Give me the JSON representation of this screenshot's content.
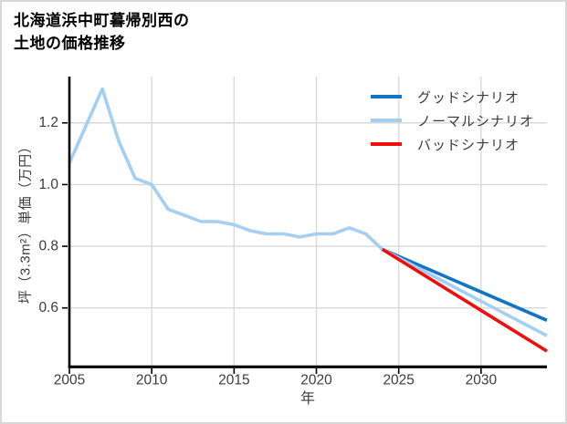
{
  "title": {
    "line1": "北海道浜中町暮帰別西の",
    "line2": "土地の価格推移"
  },
  "colors": {
    "background": "#ffffff",
    "card_border": "#d8d8d8",
    "grid": "#d9d9d9",
    "axis": "#000000",
    "tick_text": "#3c3c3c",
    "good": "#1274c5",
    "normal": "#a4cef2",
    "bad": "#f20d0d",
    "history": "#a4cef2"
  },
  "chart_data": {
    "type": "line",
    "title": "北海道浜中町暮帰別西の土地の価格推移",
    "xlabel": "年",
    "ylabel": "坪（3.3m²）単価（万円）",
    "xlim": [
      2005,
      2034
    ],
    "ylim": [
      0.41,
      1.35
    ],
    "xticks": [
      2005,
      2010,
      2015,
      2020,
      2025,
      2030
    ],
    "yticks": [
      0.6,
      0.8,
      1.0,
      1.2
    ],
    "grid": true,
    "legend_position": "top-right",
    "series": [
      {
        "name": "",
        "color": "#a4cef2",
        "in_legend": false,
        "x": [
          2005,
          2006,
          2007,
          2008,
          2009,
          2010,
          2011,
          2012,
          2013,
          2014,
          2015,
          2016,
          2017,
          2018,
          2019,
          2020,
          2021,
          2022,
          2023,
          2024
        ],
        "values": [
          1.07,
          1.19,
          1.31,
          1.14,
          1.02,
          1.0,
          0.92,
          0.9,
          0.88,
          0.88,
          0.87,
          0.85,
          0.84,
          0.84,
          0.83,
          0.84,
          0.84,
          0.86,
          0.84,
          0.79
        ]
      },
      {
        "name": "グッドシナリオ",
        "color": "#1274c5",
        "in_legend": true,
        "x": [
          2024,
          2034
        ],
        "values": [
          0.79,
          0.56
        ]
      },
      {
        "name": "ノーマルシナリオ",
        "color": "#a4cef2",
        "in_legend": true,
        "x": [
          2024,
          2034
        ],
        "values": [
          0.79,
          0.51
        ]
      },
      {
        "name": "バッドシナリオ",
        "color": "#f20d0d",
        "in_legend": true,
        "x": [
          2024,
          2034
        ],
        "values": [
          0.79,
          0.46
        ]
      }
    ]
  }
}
